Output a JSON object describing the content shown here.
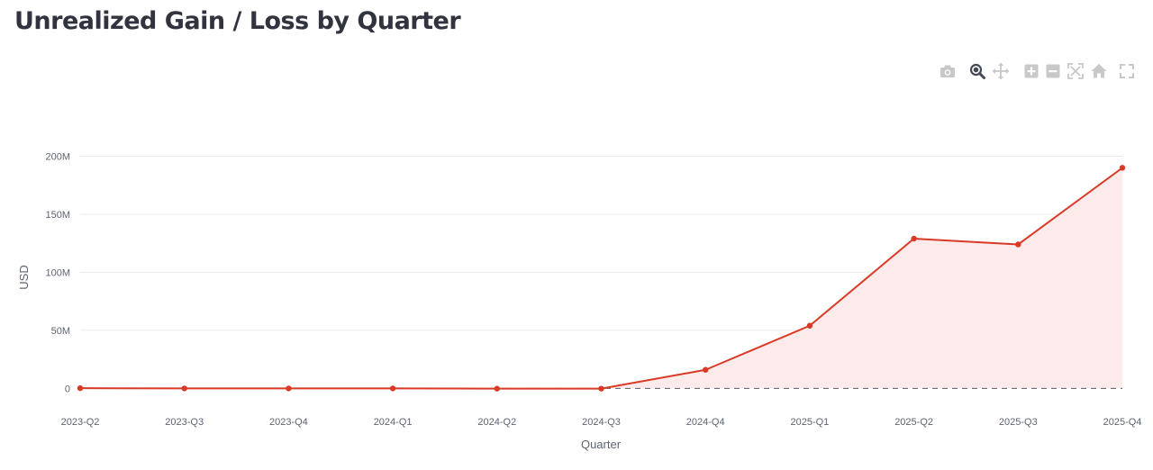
{
  "title": "Unrealized Gain / Loss by Quarter",
  "toolbar": [
    {
      "name": "camera-icon",
      "tooltip": "Download plot as a png"
    },
    {
      "name": "zoom-icon",
      "tooltip": "Zoom"
    },
    {
      "name": "pan-icon",
      "tooltip": "Pan"
    },
    {
      "name": "zoom-in-icon",
      "tooltip": "Zoom in"
    },
    {
      "name": "zoom-out-icon",
      "tooltip": "Zoom out"
    },
    {
      "name": "autoscale-icon",
      "tooltip": "Autoscale"
    },
    {
      "name": "reset-axes-icon",
      "tooltip": "Reset axes"
    },
    {
      "name": "fullscreen-icon",
      "tooltip": "Fullscreen"
    }
  ],
  "chart_data": {
    "type": "area",
    "title": "Unrealized Gain / Loss by Quarter",
    "xlabel": "Quarter",
    "ylabel": "USD",
    "categories": [
      "2023-Q2",
      "2023-Q3",
      "2023-Q4",
      "2024-Q1",
      "2024-Q2",
      "2024-Q3",
      "2024-Q4",
      "2025-Q1",
      "2025-Q2",
      "2025-Q3",
      "2025-Q4"
    ],
    "series": [
      {
        "values": [
          0.2,
          0,
          0,
          0,
          -0.2,
          -0.2,
          16,
          54,
          129,
          124,
          190
        ],
        "color": "#d93a26",
        "fill": "#fdeaea"
      }
    ],
    "ylim": [
      -9,
      212
    ],
    "yticks": [
      0,
      50,
      100,
      150,
      200
    ],
    "ytick_labels": [
      "0",
      "50M",
      "100M",
      "150M",
      "200M"
    ],
    "y_unit": "millions USD",
    "zero_line": "dashed",
    "grid": true
  }
}
